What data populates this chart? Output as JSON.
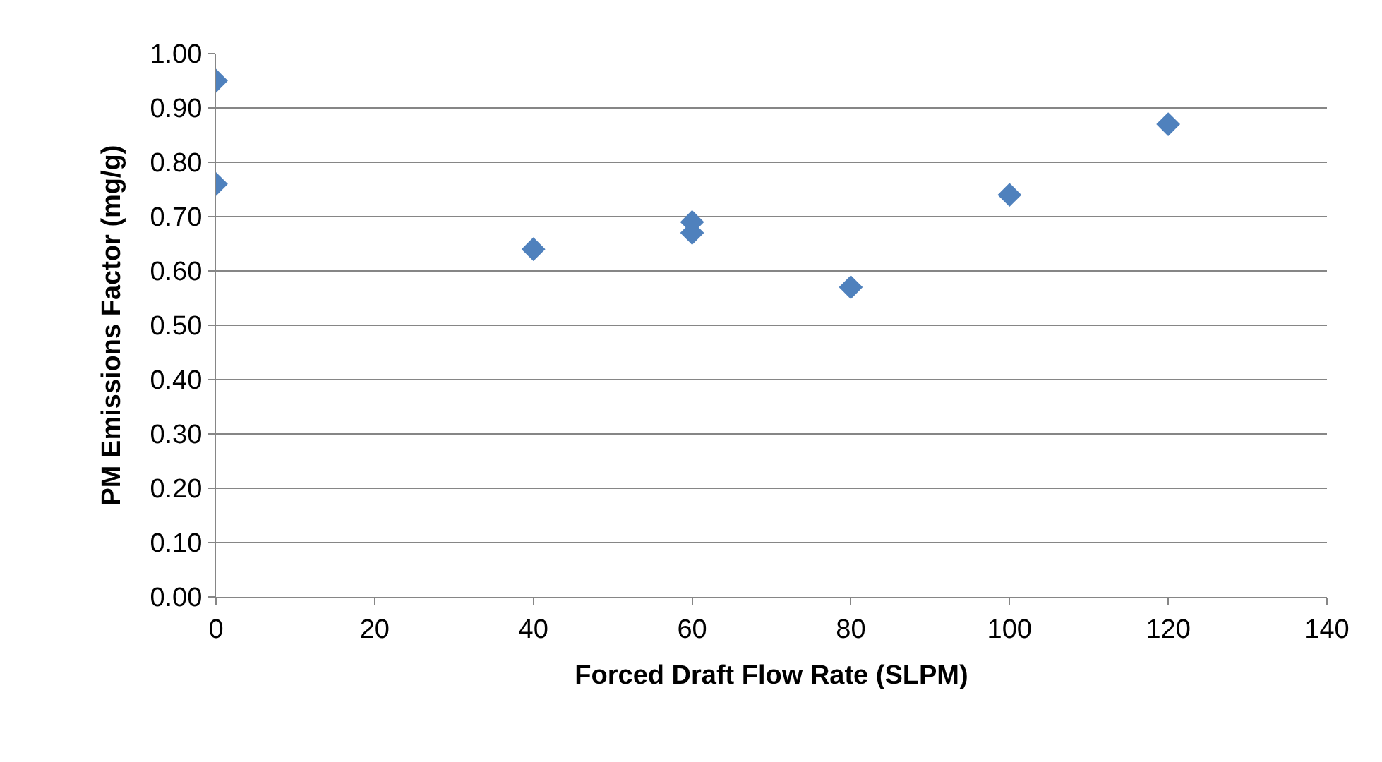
{
  "chart_data": {
    "type": "scatter",
    "xlabel": "Forced Draft Flow Rate (SLPM)",
    "ylabel": "PM Emissions Factor (mg/g)",
    "x": [
      0,
      0,
      40,
      60,
      60,
      80,
      100,
      120
    ],
    "series": [
      {
        "color": "#4f81bd",
        "values": [
          0.95,
          0.76,
          0.64,
          0.69,
          0.67,
          0.57,
          0.74,
          0.87
        ]
      }
    ],
    "xlim": [
      0,
      140
    ],
    "xticks": [
      0,
      20,
      40,
      60,
      80,
      100,
      120,
      140
    ],
    "ylim": [
      0,
      1
    ],
    "yticks": [
      {
        "value": 0,
        "label": "0.00"
      },
      {
        "value": 0.1,
        "label": "0.10"
      },
      {
        "value": 0.2,
        "label": "0.20"
      },
      {
        "value": 0.3,
        "label": "0.30"
      },
      {
        "value": 0.4,
        "label": "0.40"
      },
      {
        "value": 0.5,
        "label": "0.50"
      },
      {
        "value": 0.6,
        "label": "0.60"
      },
      {
        "value": 0.7,
        "label": "0.70"
      },
      {
        "value": 0.8,
        "label": "0.80"
      },
      {
        "value": 0.9,
        "label": "0.90"
      },
      {
        "value": 1.0,
        "label": "1.00"
      }
    ],
    "grid": "y",
    "marker": "diamond",
    "legend": false
  }
}
